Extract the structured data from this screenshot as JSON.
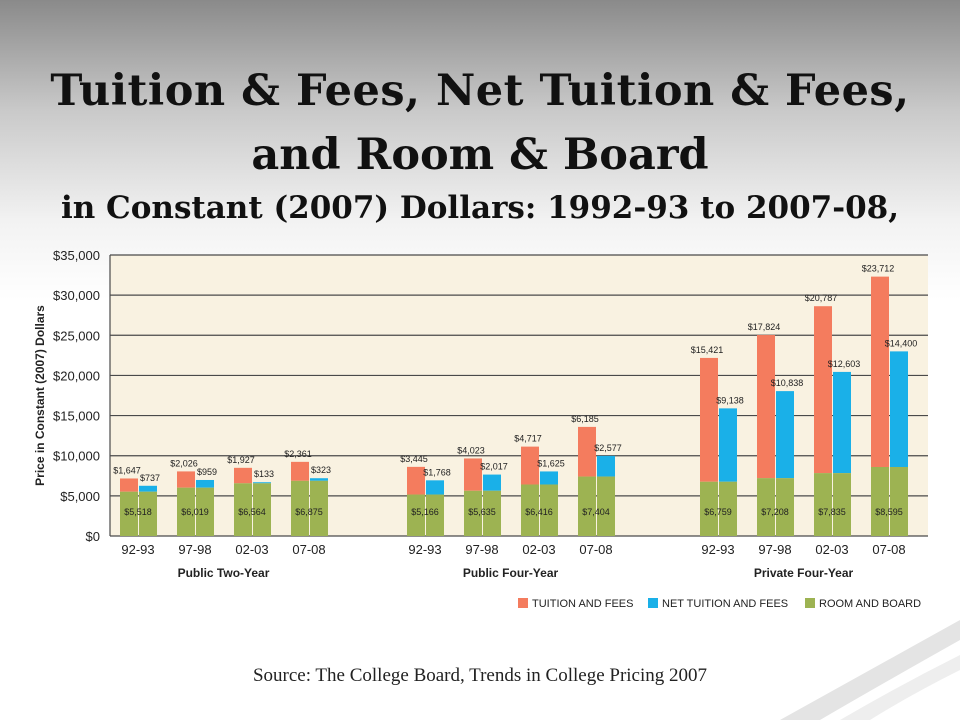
{
  "slide": {
    "title_line1": "Tuition & Fees, Net Tuition & Fees,",
    "title_line2": "and Room & Board",
    "title_line3": "in Constant (2007) Dollars: 1992-93 to 2007-08,",
    "source": "Source: The College Board, Trends in College Pricing 2007"
  },
  "colors": {
    "tuition": "#f47c5e",
    "net_tuition": "#1ab0e8",
    "room_board": "#9db352",
    "plot_bg": "#f9f2e1",
    "grid": "#4a4a4a"
  },
  "chart_data": {
    "type": "bar",
    "title": "",
    "ylabel": "Price in Constant (2007) Dollars",
    "ylim": [
      0,
      35000
    ],
    "yticks": [
      0,
      5000,
      10000,
      15000,
      20000,
      25000,
      30000,
      35000
    ],
    "ytick_labels": [
      "$0",
      "$5,000",
      "$10,000",
      "$15,000",
      "$20,000",
      "$25,000",
      "$30,000",
      "$35,000"
    ],
    "grid": true,
    "legend_position": "bottom-right",
    "legend": [
      "TUITION AND FEES",
      "NET TUITION AND FEES",
      "ROOM AND BOARD"
    ],
    "groups": [
      {
        "name": "Public Two-Year",
        "years": [
          {
            "label": "92-93",
            "room_board": 5518,
            "tuition": 1647,
            "net_tuition": 737,
            "room_label": "$5,518",
            "tuition_label": "$1,647",
            "net_label": "$737"
          },
          {
            "label": "97-98",
            "room_board": 6019,
            "tuition": 2026,
            "net_tuition": 959,
            "room_label": "$6,019",
            "tuition_label": "$2,026",
            "net_label": "$959"
          },
          {
            "label": "02-03",
            "room_board": 6564,
            "tuition": 1927,
            "net_tuition": 133,
            "room_label": "$6,564",
            "tuition_label": "$1,927",
            "net_label": "$133"
          },
          {
            "label": "07-08",
            "room_board": 6875,
            "tuition": 2361,
            "net_tuition": 323,
            "room_label": "$6,875",
            "tuition_label": "$2,361",
            "net_label": "$323"
          }
        ]
      },
      {
        "name": "Public Four-Year",
        "years": [
          {
            "label": "92-93",
            "room_board": 5166,
            "tuition": 3445,
            "net_tuition": 1768,
            "room_label": "$5,166",
            "tuition_label": "$3,445",
            "net_label": "$1,768"
          },
          {
            "label": "97-98",
            "room_board": 5635,
            "tuition": 4023,
            "net_tuition": 2017,
            "room_label": "$5,635",
            "tuition_label": "$4,023",
            "net_label": "$2,017"
          },
          {
            "label": "02-03",
            "room_board": 6416,
            "tuition": 4717,
            "net_tuition": 1625,
            "room_label": "$6,416",
            "tuition_label": "$4,717",
            "net_label": "$1,625"
          },
          {
            "label": "07-08",
            "room_board": 7404,
            "tuition": 6185,
            "net_tuition": 2577,
            "room_label": "$7,404",
            "tuition_label": "$6,185",
            "net_label": "$2,577"
          }
        ]
      },
      {
        "name": "Private Four-Year",
        "years": [
          {
            "label": "92-93",
            "room_board": 6759,
            "tuition": 15421,
            "net_tuition": 9138,
            "room_label": "$6,759",
            "tuition_label": "$15,421",
            "net_label": "$9,138"
          },
          {
            "label": "97-98",
            "room_board": 7208,
            "tuition": 17824,
            "net_tuition": 10838,
            "room_label": "$7,208",
            "tuition_label": "$17,824",
            "net_label": "$10,838"
          },
          {
            "label": "02-03",
            "room_board": 7835,
            "tuition": 20787,
            "net_tuition": 12603,
            "room_label": "$7,835",
            "tuition_label": "$20,787",
            "net_label": "$12,603"
          },
          {
            "label": "07-08",
            "room_board": 8595,
            "tuition": 23712,
            "net_tuition": 14400,
            "room_label": "$8,595",
            "tuition_label": "$23,712",
            "net_label": "$14,400"
          }
        ]
      }
    ]
  }
}
